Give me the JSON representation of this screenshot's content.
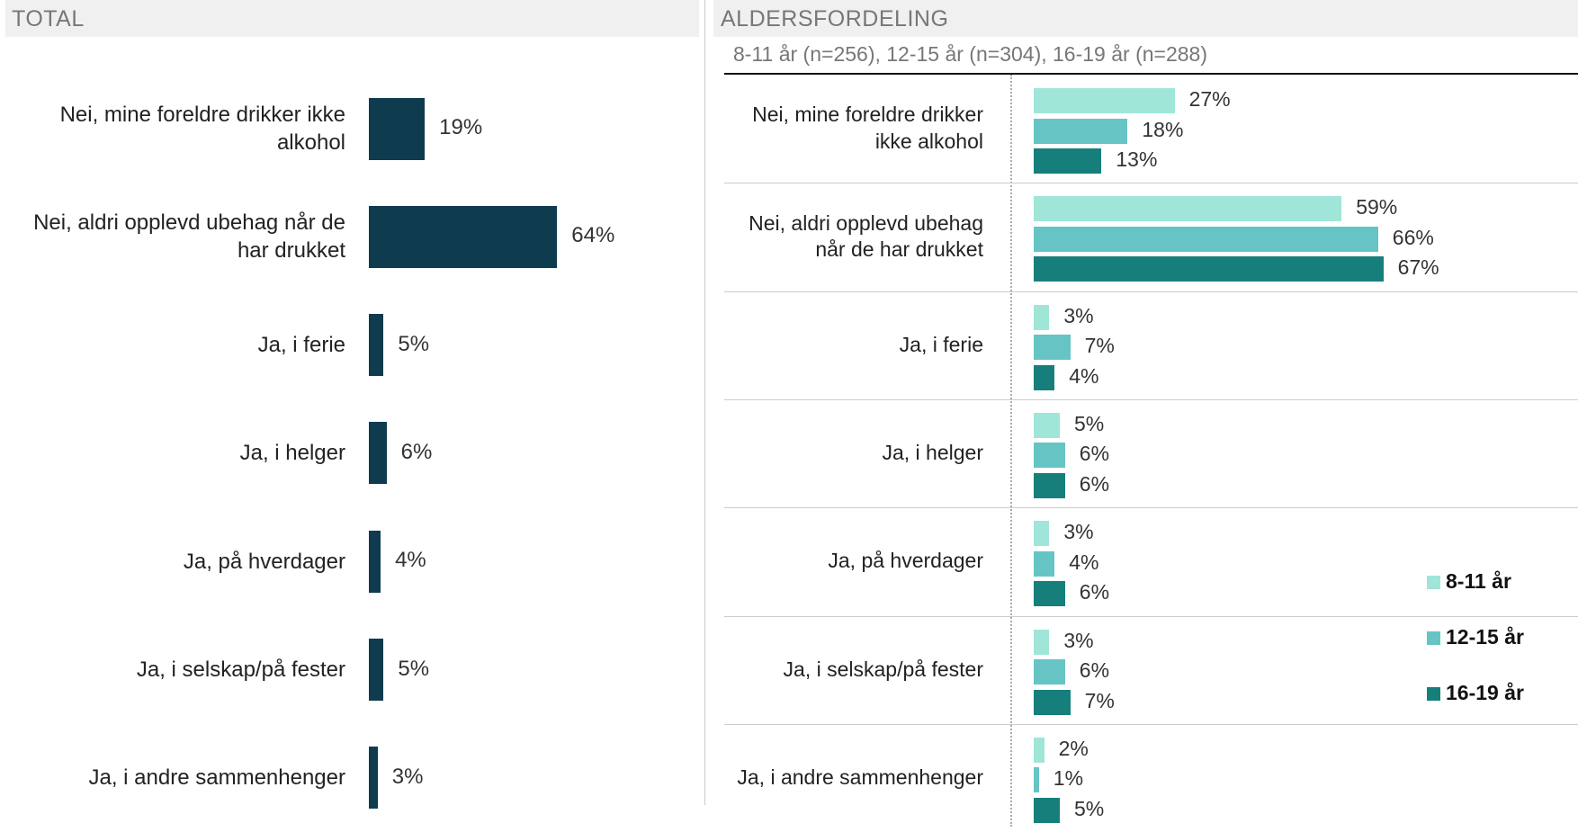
{
  "chart_data": [
    {
      "type": "hbar",
      "title": "TOTAL",
      "categories": [
        "Nei, mine foreldre drikker ikke alkohol",
        "Nei, aldri opplevd ubehag når de har drukket",
        "Ja, i ferie",
        "Ja, i helger",
        "Ja, på hverdager",
        "Ja, i selskap/på fester",
        "Ja, i andre sammenhenger"
      ],
      "values": [
        19,
        64,
        5,
        6,
        4,
        5,
        3
      ],
      "value_labels": [
        "19%",
        "64%",
        "5%",
        "6%",
        "4%",
        "5%",
        "3%"
      ],
      "color": "#0f3b4f"
    },
    {
      "type": "grouped-hbar",
      "title": "ALDERSFORDELING",
      "subtitle": "8-11 år (n=256), 12-15 år (n=304), 16-19 år  (n=288)",
      "categories": [
        "Nei, mine foreldre drikker ikke alkohol",
        "Nei, aldri opplevd ubehag når de har drukket",
        "Ja, i ferie",
        "Ja, i helger",
        "Ja, på hverdager",
        "Ja, i selskap/på fester",
        "Ja, i andre sammenhenger"
      ],
      "series": [
        {
          "name": "8-11 år",
          "color": "#a0e6d8",
          "values": [
            27,
            59,
            3,
            5,
            3,
            3,
            2
          ],
          "value_labels": [
            "27%",
            "59%",
            "3%",
            "5%",
            "3%",
            "3%",
            "2%"
          ]
        },
        {
          "name": "12-15 år",
          "color": "#66c4c4",
          "values": [
            18,
            66,
            7,
            6,
            4,
            6,
            1
          ],
          "value_labels": [
            "18%",
            "66%",
            "7%",
            "6%",
            "4%",
            "6%",
            "1%"
          ]
        },
        {
          "name": "16-19 år",
          "color": "#167f7b",
          "values": [
            13,
            67,
            4,
            6,
            6,
            7,
            5
          ],
          "value_labels": [
            "13%",
            "67%",
            "4%",
            "6%",
            "6%",
            "7%",
            "5%"
          ]
        }
      ]
    }
  ]
}
